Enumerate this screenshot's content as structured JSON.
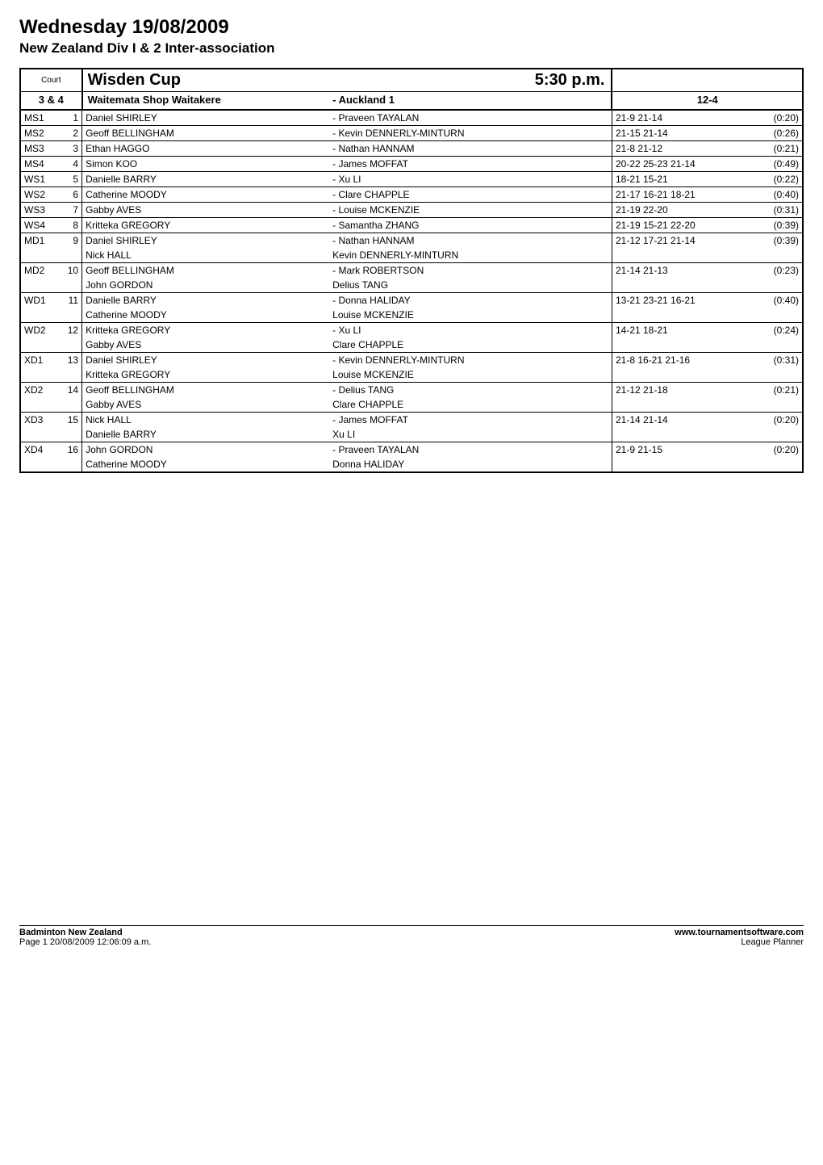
{
  "page": {
    "title": "Wednesday 19/08/2009",
    "subtitle": "New Zealand Div I & 2 Inter-association"
  },
  "header": {
    "court_label": "Court",
    "cup_name": "Wisden Cup",
    "time": "5:30 p.m.",
    "courts": "3 & 4",
    "team_a": "Waitemata Shop Waitakere",
    "team_b": "- Auckland 1",
    "overall_score": "12-4"
  },
  "matches": [
    {
      "evt": "MS1",
      "num": "1",
      "a": [
        "Daniel SHIRLEY"
      ],
      "b": [
        "- Praveen TAYALAN"
      ],
      "score": "21-9 21-14",
      "dur": "(0:20)"
    },
    {
      "evt": "MS2",
      "num": "2",
      "a": [
        "Geoff BELLINGHAM"
      ],
      "b": [
        "- Kevin DENNERLY-MINTURN"
      ],
      "score": "21-15 21-14",
      "dur": "(0:26)"
    },
    {
      "evt": "MS3",
      "num": "3",
      "a": [
        "Ethan HAGGO"
      ],
      "b": [
        "- Nathan HANNAM"
      ],
      "score": "21-8 21-12",
      "dur": "(0:21)"
    },
    {
      "evt": "MS4",
      "num": "4",
      "a": [
        "Simon KOO"
      ],
      "b": [
        "- James MOFFAT"
      ],
      "score": "20-22 25-23 21-14",
      "dur": "(0:49)"
    },
    {
      "evt": "WS1",
      "num": "5",
      "a": [
        "Danielle BARRY"
      ],
      "b": [
        "- Xu LI"
      ],
      "score": "18-21 15-21",
      "dur": "(0:22)"
    },
    {
      "evt": "WS2",
      "num": "6",
      "a": [
        "Catherine MOODY"
      ],
      "b": [
        "- Clare CHAPPLE"
      ],
      "score": "21-17 16-21 18-21",
      "dur": "(0:40)"
    },
    {
      "evt": "WS3",
      "num": "7",
      "a": [
        "Gabby AVES"
      ],
      "b": [
        "- Louise MCKENZIE"
      ],
      "score": "21-19 22-20",
      "dur": "(0:31)"
    },
    {
      "evt": "WS4",
      "num": "8",
      "a": [
        "Kritteka GREGORY"
      ],
      "b": [
        "- Samantha ZHANG"
      ],
      "score": "21-19 15-21 22-20",
      "dur": "(0:39)"
    },
    {
      "evt": "MD1",
      "num": "9",
      "a": [
        "Daniel SHIRLEY",
        "Nick HALL"
      ],
      "b": [
        "- Nathan HANNAM",
        "  Kevin DENNERLY-MINTURN"
      ],
      "score": "21-12 17-21 21-14",
      "dur": "(0:39)"
    },
    {
      "evt": "MD2",
      "num": "10",
      "a": [
        "Geoff BELLINGHAM",
        "John GORDON"
      ],
      "b": [
        "- Mark ROBERTSON",
        "  Delius TANG"
      ],
      "score": "21-14 21-13",
      "dur": "(0:23)"
    },
    {
      "evt": "WD1",
      "num": "11",
      "a": [
        "Danielle BARRY",
        "Catherine MOODY"
      ],
      "b": [
        "- Donna HALIDAY",
        "  Louise MCKENZIE"
      ],
      "score": "13-21 23-21 16-21",
      "dur": "(0:40)"
    },
    {
      "evt": "WD2",
      "num": "12",
      "a": [
        "Kritteka GREGORY",
        "Gabby AVES"
      ],
      "b": [
        "- Xu LI",
        "  Clare CHAPPLE"
      ],
      "score": "14-21 18-21",
      "dur": "(0:24)"
    },
    {
      "evt": "XD1",
      "num": "13",
      "a": [
        "Daniel SHIRLEY",
        "Kritteka GREGORY"
      ],
      "b": [
        "- Kevin DENNERLY-MINTURN",
        "  Louise MCKENZIE"
      ],
      "score": "21-8 16-21 21-16",
      "dur": "(0:31)"
    },
    {
      "evt": "XD2",
      "num": "14",
      "a": [
        "Geoff BELLINGHAM",
        "Gabby AVES"
      ],
      "b": [
        "- Delius TANG",
        "  Clare CHAPPLE"
      ],
      "score": "21-12 21-18",
      "dur": "(0:21)"
    },
    {
      "evt": "XD3",
      "num": "15",
      "a": [
        "Nick HALL",
        "Danielle BARRY"
      ],
      "b": [
        "- James MOFFAT",
        "  Xu LI"
      ],
      "score": "21-14 21-14",
      "dur": "(0:20)"
    },
    {
      "evt": "XD4",
      "num": "16",
      "a": [
        "John GORDON",
        "Catherine MOODY"
      ],
      "b": [
        "- Praveen TAYALAN",
        "  Donna HALIDAY"
      ],
      "score": "21-9 21-15",
      "dur": "(0:20)"
    }
  ],
  "footer": {
    "left_bold": "Badminton New Zealand",
    "left_line2": "Page 1      20/08/2009 12:06:09 a.m.",
    "right_bold": "www.tournamentsoftware.com",
    "right_line2": "League Planner"
  }
}
